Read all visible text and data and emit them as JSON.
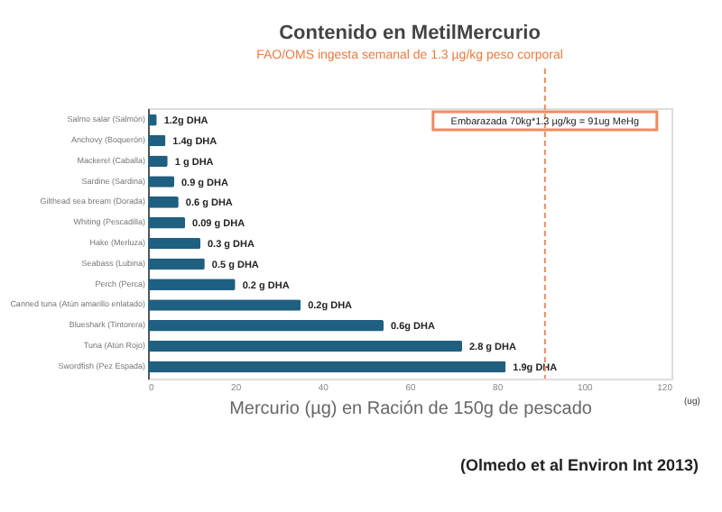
{
  "chart_data": {
    "type": "bar",
    "orientation": "horizontal",
    "title": "Contenido en MetilMercurio",
    "subtitle": "FAO/OMS ingesta semanal de 1.3 µg/kg peso corporal",
    "xlabel": "Mercurio (µg) en Ración de 150g de pescado",
    "categories": [
      "Salmo salar (Salmón)",
      "Anchovy (Boquerón)",
      "Mackerel (Caballa)",
      "Sardine (Sardina)",
      "Gilthead sea bream (Dorada)",
      "Whiting (Pescadilla)",
      "Hake (Merluza)",
      "Seabass (Lubina)",
      "Perch (Perca)",
      "Canned tuna (Atún amarillo enlatado)",
      "Blueshark (Tintorera)",
      "Tuna (Atún Rojo)",
      "Swordfish (Pez Espada)"
    ],
    "values": [
      2,
      4,
      4.5,
      6,
      7,
      8.5,
      12,
      13,
      20,
      35,
      54,
      72,
      82
    ],
    "color": "#1f5f80",
    "xlim": [
      0,
      120
    ],
    "xticks": [
      0,
      20,
      40,
      60,
      80,
      100,
      120
    ],
    "ref_lines": [
      {
        "axis": "x",
        "value": 91,
        "label": "Embarazada 70kg*1.3 µg/kg = 91ug MeHg",
        "color": "#f08a5d",
        "line_style": "dashed"
      }
    ],
    "annotations": [
      {
        "text": "1.2g DHA",
        "x": 2,
        "y": "Salmo salar (Salmón)"
      },
      {
        "text": "1.4g DHA",
        "x": 4,
        "y": "Anchovy (Boquerón)"
      },
      {
        "text": "1 g DHA",
        "x": 4.5,
        "y": "Mackerel (Caballa)"
      },
      {
        "text": "0.9 g DHA",
        "x": 6,
        "y": "Sardine (Sardina)"
      },
      {
        "text": "0.6 g DHA",
        "x": 7,
        "y": "Gilthead sea bream (Dorada)"
      },
      {
        "text": "0.09 g DHA",
        "x": 8.5,
        "y": "Whiting (Pescadilla)"
      },
      {
        "text": "0.3 g DHA",
        "x": 12,
        "y": "Hake (Merluza)"
      },
      {
        "text": "0.5 g DHA",
        "x": 13,
        "y": "Seabass (Lubina)"
      },
      {
        "text": "0.2 g DHA",
        "x": 20,
        "y": "Perch (Perca)"
      },
      {
        "text": "0.2g DHA",
        "x": 35,
        "y": "Canned tuna (Atún amarillo enlatado)"
      },
      {
        "text": "0.6g DHA",
        "x": 54,
        "y": "Blueshark (Tintorera)"
      },
      {
        "text": "2.8 g DHA",
        "x": 72,
        "y": "Tuna (Atún Rojo)"
      },
      {
        "text": "1.9g DHA",
        "x": 82,
        "y": "Swordfish (Pez Espada)"
      },
      "(ug)",
      "(Olmedo et al Environ Int 2013)"
    ],
    "grid": false,
    "legend": false
  }
}
